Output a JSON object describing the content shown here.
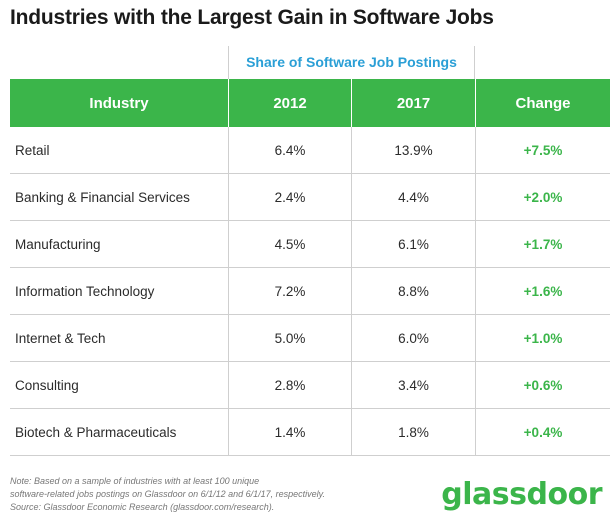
{
  "chart_data": {
    "type": "table",
    "title": "Industries with the Largest Gain in Software Jobs",
    "group_header": "Share of Software Job Postings",
    "columns": [
      "Industry",
      "2012",
      "2017",
      "Change"
    ],
    "rows": [
      {
        "industry": "Retail",
        "y2012": "6.4%",
        "y2017": "13.9%",
        "change": "+7.5%"
      },
      {
        "industry": "Banking & Financial Services",
        "y2012": "2.4%",
        "y2017": "4.4%",
        "change": "+2.0%"
      },
      {
        "industry": "Manufacturing",
        "y2012": "4.5%",
        "y2017": "6.1%",
        "change": "+1.7%"
      },
      {
        "industry": "Information Technology",
        "y2012": "7.2%",
        "y2017": "8.8%",
        "change": "+1.6%"
      },
      {
        "industry": "Internet & Tech",
        "y2012": "5.0%",
        "y2017": "6.0%",
        "change": "+1.0%"
      },
      {
        "industry": "Consulting",
        "y2012": "2.8%",
        "y2017": "3.4%",
        "change": "+0.6%"
      },
      {
        "industry": "Biotech & Pharmaceuticals",
        "y2012": "1.4%",
        "y2017": "1.8%",
        "change": "+0.4%"
      }
    ],
    "note_lines": [
      "Note: Based on a sample of industries with at least 100 unique",
      "software-related jobs postings on Glassdoor on 6/1/12 and 6/1/17, respectively.",
      "Source: Glassdoor Economic Research (glassdoor.com/research)."
    ],
    "logo_text": "glassdoor",
    "colors": {
      "header_bg": "#3bb54a",
      "change_text": "#3bb54a",
      "group_header_text": "#2a9fd6"
    }
  }
}
